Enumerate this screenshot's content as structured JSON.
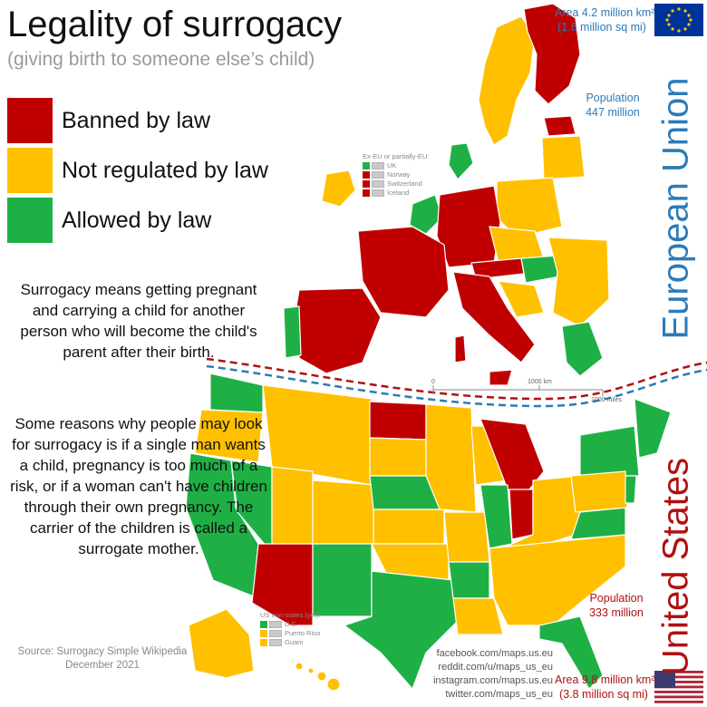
{
  "title": "Legality of surrogacy",
  "subtitle": "(giving birth to someone else’s child)",
  "legend": [
    {
      "label": "Banned by law",
      "color": "#c00000"
    },
    {
      "label": "Not regulated by law",
      "color": "#ffc000"
    },
    {
      "label": "Allowed by law",
      "color": "#1eb045"
    }
  ],
  "paragraph1": "Surrogacy means getting pregnant and carrying a child for another person who will become the child's parent after their birth.",
  "paragraph2": "Some reasons why people may look for surrogacy is if a single man wants a child, pregnancy is too much of a risk, or if a woman can't have children through their own pregnancy. The carrier of the children is called a surrogate mother.",
  "source": {
    "line1": "Source: Surrogacy Simple Wikipedia",
    "line2": "December 2021"
  },
  "eu": {
    "name": "European Union",
    "area_line1": "Area 4.2 million km²",
    "area_line2": "(1.6 million sq mi)",
    "population_label": "Population",
    "population_value": "447 million",
    "flag_icon": "eu-flag-icon"
  },
  "us": {
    "name": "United States",
    "area_line1": "Area 9.8 million km²",
    "area_line2": "(3.8 million sq mi)",
    "population_label": "Population",
    "population_value": "333 million",
    "flag_icon": "us-flag-icon"
  },
  "ex_eu_legend": {
    "title": "Ex-EU or partially-EU:",
    "items": [
      {
        "label": "UK",
        "color": "#1eb045"
      },
      {
        "label": "Norway",
        "color": "#c00000"
      },
      {
        "label": "Switzerland",
        "color": "#c00000"
      },
      {
        "label": "Iceland",
        "color": "#c00000"
      }
    ]
  },
  "us_nonstates_legend": {
    "title": "US non-states (yet):",
    "items": [
      {
        "label": "D.C.",
        "color": "#1eb045"
      },
      {
        "label": "Puerto Rico",
        "color": "#ffc000"
      },
      {
        "label": "Guam",
        "color": "#ffc000"
      }
    ]
  },
  "scale": {
    "km_zero": "0",
    "km_label": "1000 km",
    "miles_label": "1000 miles"
  },
  "social": [
    "facebook.com/maps.us.eu",
    "reddit.com/u/maps_us_eu",
    "instagram.com/maps.us.eu",
    "twitter.com/maps_us_eu"
  ],
  "colors": {
    "banned": "#c00000",
    "not_regulated": "#ffc000",
    "allowed": "#1eb045",
    "eu_blue": "#2b7bb9",
    "us_red": "#b01010"
  }
}
